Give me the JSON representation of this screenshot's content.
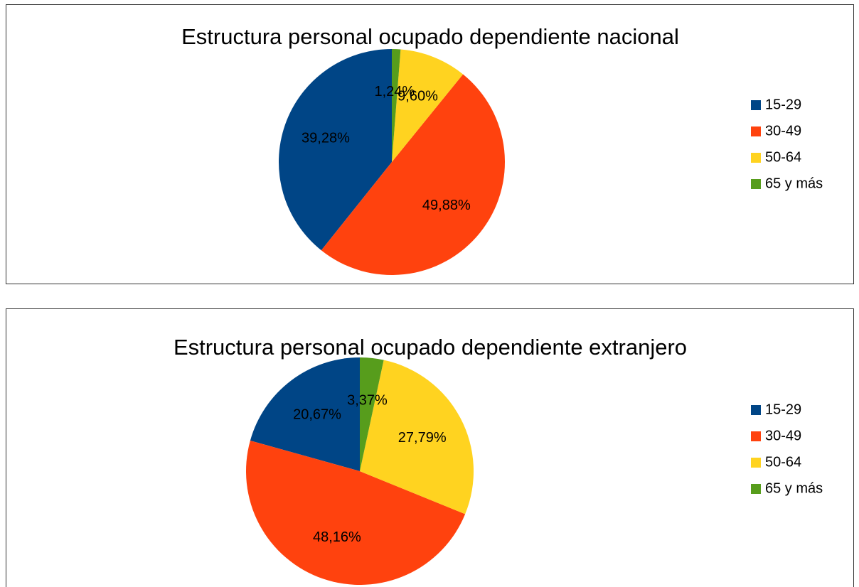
{
  "chart_data": [
    {
      "type": "pie",
      "title": "Estructura personal ocupado dependiente nacional",
      "categories": [
        "15-29",
        "30-49",
        "50-64",
        "65 y más"
      ],
      "values": [
        39.28,
        49.88,
        9.6,
        1.24
      ],
      "value_labels": [
        "39,28%",
        "49,88%",
        "9,60%",
        "1,24%"
      ],
      "colors": [
        "#004586",
        "#ff420e",
        "#ffd320",
        "#579d1c"
      ],
      "legend": "right"
    },
    {
      "type": "pie",
      "title": "Estructura personal ocupado dependiente extranjero",
      "categories": [
        "15-29",
        "30-49",
        "50-64",
        "65 y más"
      ],
      "values": [
        20.67,
        48.16,
        27.79,
        3.37
      ],
      "value_labels": [
        "20,67%",
        "48,16%",
        "27,79%",
        "3,37%"
      ],
      "colors": [
        "#004586",
        "#ff420e",
        "#ffd320",
        "#579d1c"
      ],
      "legend": "right"
    }
  ]
}
